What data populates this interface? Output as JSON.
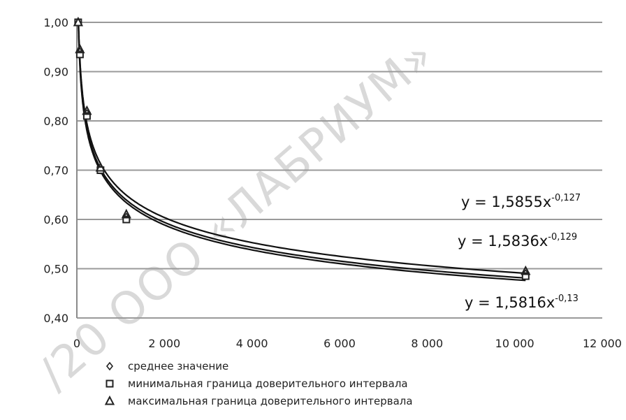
{
  "watermark": "/20 ООО «ЛАБРИУМ»",
  "chart_data": {
    "type": "scatter",
    "title": "",
    "xlabel": "",
    "ylabel": "",
    "xlim": [
      0,
      12000
    ],
    "ylim": [
      0.4,
      1.0
    ],
    "x_ticks": [
      0,
      2000,
      4000,
      6000,
      8000,
      10000,
      12000
    ],
    "x_tick_labels": [
      "0",
      "2 000",
      "4 000",
      "6 000",
      "8 000",
      "10 000",
      "12 000"
    ],
    "y_ticks": [
      0.4,
      0.5,
      0.6,
      0.7,
      0.8,
      0.9,
      1.0
    ],
    "y_tick_labels": [
      "0,40",
      "0,50",
      "0,60",
      "0,70",
      "0,80",
      "0,90",
      "1,00"
    ],
    "grid": "horizontal",
    "legend_position": "bottom-left",
    "series": [
      {
        "name": "среднее значение",
        "marker": "diamond",
        "x": [
          30,
          70,
          230,
          540,
          1130,
          10250
        ],
        "y": [
          1.0,
          0.94,
          0.815,
          0.7,
          0.605,
          0.49
        ]
      },
      {
        "name": "минимальная граница доверительного интервала",
        "marker": "square",
        "x": [
          30,
          70,
          230,
          540,
          1130,
          10250
        ],
        "y": [
          1.0,
          0.935,
          0.81,
          0.7,
          0.6,
          0.485
        ]
      },
      {
        "name": "максимальная граница доверительного интервала",
        "marker": "triangle",
        "x": [
          30,
          70,
          230,
          540,
          1130,
          10250
        ],
        "y": [
          1.0,
          0.945,
          0.82,
          0.705,
          0.61,
          0.495
        ]
      }
    ],
    "trendlines": [
      {
        "coef": 1.5855,
        "exp": -0.127,
        "label_base": "y = 1,5855x",
        "label_exp": "-0,127"
      },
      {
        "coef": 1.5836,
        "exp": -0.129,
        "label_base": "y = 1,5836x",
        "label_exp": "-0,129"
      },
      {
        "coef": 1.5816,
        "exp": -0.13,
        "label_base": "y = 1,5816x",
        "label_exp": "-0,13"
      }
    ]
  }
}
